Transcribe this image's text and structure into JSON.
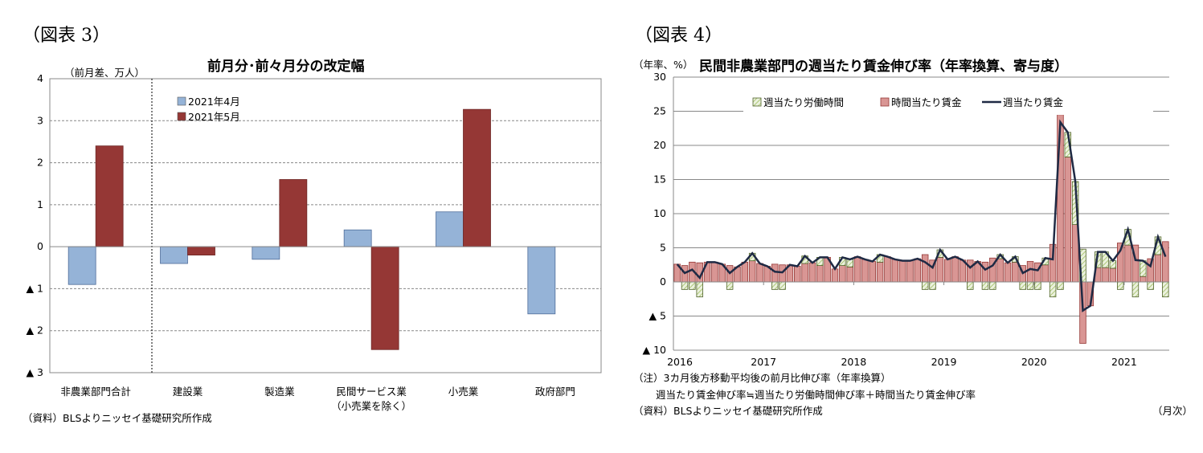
{
  "left": {
    "figure_label": "（図表 3）",
    "source": "（資料）BLSよりニッセイ基礎研究所作成",
    "chart_data": {
      "type": "bar",
      "title": "前月分･前々月分の改定幅",
      "ylabel": "（前月差、万人）",
      "categories": [
        "非農業部門合計",
        "建設業",
        "製造業",
        "民間サービス業",
        "小売業",
        "政府部門"
      ],
      "category_sublabels": {
        "民間サービス業": "（小売業を除く）"
      },
      "series": [
        {
          "name": "2021年4月",
          "color": "#95b3d7",
          "values": [
            -0.9,
            -0.4,
            -0.3,
            0.4,
            0.83,
            -1.6
          ]
        },
        {
          "name": "2021年5月",
          "color": "#953735",
          "values": [
            2.4,
            -0.2,
            1.6,
            -2.45,
            3.27,
            null
          ]
        }
      ],
      "ylim": [
        -3,
        4
      ],
      "yticks": [
        4,
        3,
        2,
        1,
        0,
        -1,
        -2,
        -3
      ],
      "ytick_labels": [
        "4",
        "3",
        "2",
        "1",
        "0",
        "▲ 1",
        "▲ 2",
        "▲ 3"
      ],
      "grid": true,
      "legend": "top-left"
    }
  },
  "right": {
    "figure_label": "（図表 4）",
    "note1": "（注）3カ月後方移動平均後の前月比伸び率（年率換算）",
    "note2": "週当たり賃金伸び率≒週当たり労働時間伸び率＋時間当たり賃金伸び率",
    "source": "（資料）BLSよりニッセイ基礎研究所作成",
    "xunit": "（月次）",
    "chart_data": {
      "type": "bar+line",
      "title": "民間非農業部門の週当たり賃金伸び率（年率換算、寄与度）",
      "ylabel": "（年率、%）",
      "x_start": "2016-01",
      "x_end": "2021-06",
      "xtick_labels": [
        "2016",
        "2017",
        "2018",
        "2019",
        "2020",
        "2021"
      ],
      "ylim": [
        -10,
        30
      ],
      "yticks": [
        30,
        25,
        20,
        15,
        10,
        5,
        0,
        -5,
        -10
      ],
      "ytick_labels": [
        "30",
        "25",
        "20",
        "15",
        "10",
        "5",
        "0",
        "▲ 5",
        "▲ 10"
      ],
      "grid": true,
      "legend": "top",
      "series": [
        {
          "name": "週当たり労働時間",
          "kind": "stacked-bar",
          "color": "#d7e4bd",
          "values": [
            0,
            -1.1,
            -1.1,
            -2.2,
            0,
            0,
            0,
            -1.1,
            0,
            0,
            1.1,
            0,
            0,
            -1.1,
            -1.1,
            0,
            0,
            1.1,
            0,
            1.2,
            0,
            0,
            1.2,
            1.1,
            0,
            0,
            0,
            1.1,
            0,
            0,
            0,
            0,
            0,
            -1.1,
            -1.1,
            1.1,
            0,
            0,
            0,
            -1.1,
            0,
            -1.1,
            -1.1,
            0.6,
            0,
            0.8,
            -1.1,
            -1.1,
            -1.1,
            1.0,
            -2.2,
            -1.1,
            3.6,
            6.3,
            4.8,
            0,
            2.3,
            2.3,
            1.1,
            -1.1,
            2.3,
            -2.2,
            2.3,
            -1.1,
            2.6,
            -2.2
          ]
        },
        {
          "name": "時間当たり賃金",
          "kind": "stacked-bar",
          "color": "#d99694",
          "values": [
            2.6,
            2.4,
            2.9,
            2.8,
            2.9,
            2.9,
            2.6,
            2.4,
            2.2,
            2.9,
            3.1,
            2.7,
            2.3,
            2.6,
            2.5,
            2.5,
            2.3,
            2.7,
            2.8,
            2.4,
            3.6,
            1.9,
            2.4,
            2.2,
            3.7,
            3.3,
            3.0,
            2.9,
            3.7,
            3.3,
            3.1,
            3.1,
            3.4,
            4.0,
            3.2,
            3.6,
            3.3,
            3.7,
            3.2,
            3.2,
            3.0,
            2.9,
            3.5,
            3.4,
            2.8,
            2.9,
            2.4,
            3.0,
            2.8,
            2.5,
            5.5,
            24.5,
            18.3,
            8.4,
            -9.0,
            -3.5,
            2.1,
            2.1,
            2.0,
            5.7,
            5.4,
            5.4,
            0.8,
            3.4,
            4.0,
            5.9
          ]
        },
        {
          "name": "週当たり賃金",
          "kind": "line",
          "color": "#1f2a44",
          "values": [
            2.6,
            1.3,
            1.8,
            0.6,
            2.9,
            2.9,
            2.6,
            1.3,
            2.2,
            2.9,
            4.2,
            2.7,
            2.3,
            1.5,
            1.4,
            2.5,
            2.3,
            3.8,
            2.8,
            3.6,
            3.6,
            1.9,
            3.6,
            3.3,
            3.7,
            3.3,
            3.0,
            4.0,
            3.7,
            3.3,
            3.1,
            3.1,
            3.4,
            2.9,
            2.1,
            4.7,
            3.3,
            3.7,
            3.2,
            2.1,
            3.0,
            1.8,
            2.4,
            4.0,
            2.8,
            3.7,
            1.3,
            1.9,
            1.7,
            3.5,
            3.3,
            23.4,
            21.9,
            14.7,
            -4.2,
            -3.5,
            4.4,
            4.4,
            3.1,
            4.6,
            7.7,
            3.2,
            3.1,
            2.3,
            6.6,
            3.7
          ]
        }
      ]
    }
  }
}
